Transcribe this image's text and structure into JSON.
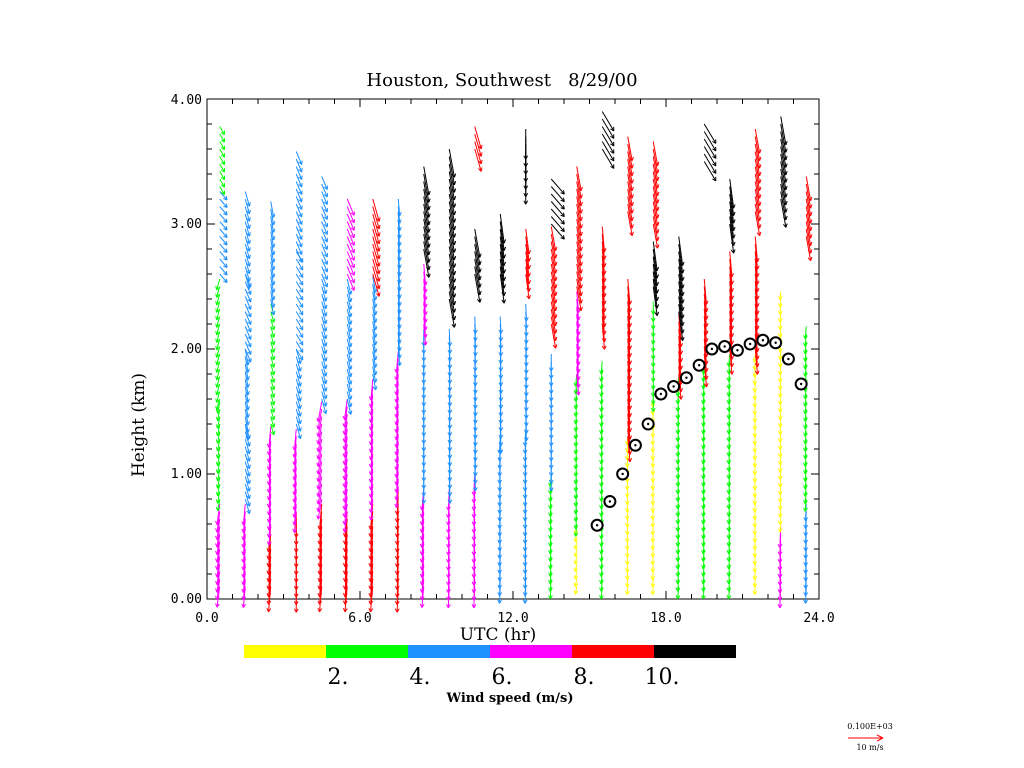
{
  "chart_data": {
    "type": "wind-profile",
    "title": "Houston, Southwest   8/29/00",
    "xlabel": "UTC (hr)",
    "ylabel": "Height (km)",
    "xlim": [
      0,
      24
    ],
    "ylim": [
      0,
      4
    ],
    "x_tick_labels": [
      "0.0",
      "6.0",
      "12.0",
      "18.0",
      "24.0"
    ],
    "y_tick_labels": [
      "0.00",
      "1.00",
      "2.00",
      "3.00",
      "4.00"
    ],
    "colorbar": {
      "label": "Wind speed (m/s)",
      "tick_labels": [
        "2.",
        "4.",
        "6.",
        "8.",
        "10."
      ],
      "colors": [
        "#ffff00",
        "#00ff00",
        "#1e90ff",
        "#ff00ff",
        "#ff0000",
        "#000000"
      ],
      "bins_mps": [
        [
          0,
          2
        ],
        [
          2,
          4
        ],
        [
          4,
          6
        ],
        [
          6,
          8
        ],
        [
          8,
          10
        ],
        [
          10,
          99
        ]
      ]
    },
    "reference_vector": {
      "value_label": "0.100E+03",
      "speed_label": "10 m/s",
      "color": "#ff0000"
    },
    "profile_times_utc": [
      0.5,
      1.5,
      2.5,
      3.5,
      4.5,
      5.5,
      6.5,
      7.5,
      8.5,
      9.5,
      10.5,
      11.5,
      12.5,
      13.5,
      14.5,
      15.5,
      16.5,
      17.5,
      18.5,
      19.5,
      20.5,
      21.5,
      22.5,
      23.5
    ],
    "mixing_height": {
      "marker": "circle",
      "points": [
        {
          "x": 15.3,
          "y": 0.59
        },
        {
          "x": 15.8,
          "y": 0.78
        },
        {
          "x": 16.3,
          "y": 1.0
        },
        {
          "x": 16.8,
          "y": 1.23
        },
        {
          "x": 17.3,
          "y": 1.4
        },
        {
          "x": 17.8,
          "y": 1.64
        },
        {
          "x": 18.3,
          "y": 1.7
        },
        {
          "x": 18.8,
          "y": 1.77
        },
        {
          "x": 19.3,
          "y": 1.87
        },
        {
          "x": 19.8,
          "y": 2.0
        },
        {
          "x": 20.3,
          "y": 2.02
        },
        {
          "x": 20.8,
          "y": 1.99
        },
        {
          "x": 21.3,
          "y": 2.04
        },
        {
          "x": 21.8,
          "y": 2.07
        },
        {
          "x": 22.3,
          "y": 2.05
        },
        {
          "x": 22.8,
          "y": 1.92
        },
        {
          "x": 23.3,
          "y": 1.72
        }
      ]
    },
    "wind_profiles": [
      {
        "t": 0.5,
        "top": 3.8,
        "layers": [
          {
            "y0": 0.1,
            "y1": 0.8,
            "spd": 7,
            "dir": 195
          },
          {
            "y0": 0.8,
            "y1": 1.6,
            "spd": 3,
            "dir": 200
          },
          {
            "y0": 1.6,
            "y1": 2.6,
            "spd": 3,
            "dir": 210
          },
          {
            "y0": 2.6,
            "y1": 3.3,
            "spd": 5,
            "dir": 120
          },
          {
            "y0": 3.3,
            "y1": 3.8,
            "spd": 3,
            "dir": 130
          }
        ]
      },
      {
        "t": 1.5,
        "top": 3.8,
        "layers": [
          {
            "y0": 0.1,
            "y1": 0.8,
            "spd": 7,
            "dir": 190
          },
          {
            "y0": 0.8,
            "y1": 1.4,
            "spd": 5,
            "dir": 150
          },
          {
            "y0": 1.4,
            "y1": 2.0,
            "spd": 5,
            "dir": 160
          },
          {
            "y0": 2.0,
            "y1": 2.6,
            "spd": 5,
            "dir": 140
          },
          {
            "y0": 2.6,
            "y1": 3.3,
            "spd": 5,
            "dir": 150
          }
        ]
      },
      {
        "t": 2.5,
        "top": 3.3,
        "layers": [
          {
            "y0": 0.1,
            "y1": 0.6,
            "spd": 9,
            "dir": 190
          },
          {
            "y0": 0.6,
            "y1": 1.4,
            "spd": 7,
            "dir": 190
          },
          {
            "y0": 1.4,
            "y1": 2.4,
            "spd": 3,
            "dir": 150
          },
          {
            "y0": 2.4,
            "y1": 3.2,
            "spd": 5,
            "dir": 160
          }
        ]
      },
      {
        "t": 3.5,
        "top": 3.8,
        "layers": [
          {
            "y0": 0.1,
            "y1": 0.7,
            "spd": 9,
            "dir": 180
          },
          {
            "y0": 0.7,
            "y1": 1.4,
            "spd": 7,
            "dir": 190
          },
          {
            "y0": 1.4,
            "y1": 2.0,
            "spd": 5,
            "dir": 150
          },
          {
            "y0": 2.0,
            "y1": 2.8,
            "spd": 5,
            "dir": 130
          },
          {
            "y0": 2.8,
            "y1": 3.6,
            "spd": 5,
            "dir": 140
          }
        ]
      },
      {
        "t": 4.5,
        "top": 3.6,
        "layers": [
          {
            "y0": 0.1,
            "y1": 0.8,
            "spd": 9,
            "dir": 190
          },
          {
            "y0": 0.8,
            "y1": 1.6,
            "spd": 7,
            "dir": 200
          },
          {
            "y0": 1.6,
            "y1": 2.6,
            "spd": 5,
            "dir": 150
          },
          {
            "y0": 2.6,
            "y1": 3.4,
            "spd": 5,
            "dir": 140
          }
        ]
      },
      {
        "t": 5.5,
        "top": 3.6,
        "layers": [
          {
            "y0": 0.1,
            "y1": 0.7,
            "spd": 9,
            "dir": 190
          },
          {
            "y0": 0.7,
            "y1": 1.6,
            "spd": 7,
            "dir": 195
          },
          {
            "y0": 1.6,
            "y1": 2.6,
            "spd": 5,
            "dir": 155
          },
          {
            "y0": 2.6,
            "y1": 3.2,
            "spd": 7,
            "dir": 140
          }
        ]
      },
      {
        "t": 6.5,
        "top": 3.5,
        "layers": [
          {
            "y0": 0.1,
            "y1": 0.8,
            "spd": 9,
            "dir": 190
          },
          {
            "y0": 0.8,
            "y1": 1.8,
            "spd": 7,
            "dir": 190
          },
          {
            "y0": 1.8,
            "y1": 2.6,
            "spd": 5,
            "dir": 160
          },
          {
            "y0": 2.6,
            "y1": 3.2,
            "spd": 9,
            "dir": 150
          }
        ]
      },
      {
        "t": 7.5,
        "top": 3.6,
        "layers": [
          {
            "y0": 0.1,
            "y1": 0.9,
            "spd": 9,
            "dir": 185
          },
          {
            "y0": 0.9,
            "y1": 2.0,
            "spd": 7,
            "dir": 190
          },
          {
            "y0": 2.0,
            "y1": 3.2,
            "spd": 5,
            "dir": 170
          }
        ]
      },
      {
        "t": 8.5,
        "top": 3.5,
        "layers": [
          {
            "y0": 0.1,
            "y1": 0.9,
            "spd": 7,
            "dir": 190
          },
          {
            "y0": 0.9,
            "y1": 2.2,
            "spd": 5,
            "dir": 180
          },
          {
            "y0": 2.2,
            "y1": 2.7,
            "spd": 7,
            "dir": 170
          },
          {
            "y0": 2.8,
            "y1": 3.5,
            "spd": 11,
            "dir": 160
          }
        ]
      },
      {
        "t": 9.5,
        "top": 3.8,
        "layers": [
          {
            "y0": 0.1,
            "y1": 0.9,
            "spd": 7,
            "dir": 185
          },
          {
            "y0": 0.9,
            "y1": 2.2,
            "spd": 5,
            "dir": 175
          },
          {
            "y0": 2.4,
            "y1": 3.6,
            "spd": 11,
            "dir": 160
          }
        ]
      },
      {
        "t": 10.5,
        "top": 3.8,
        "layers": [
          {
            "y0": 0.1,
            "y1": 1.0,
            "spd": 7,
            "dir": 185
          },
          {
            "y0": 1.0,
            "y1": 2.3,
            "spd": 5,
            "dir": 175
          },
          {
            "y0": 2.6,
            "y1": 3.0,
            "spd": 11,
            "dir": 160
          },
          {
            "y0": 3.6,
            "y1": 3.8,
            "spd": 9,
            "dir": 150
          }
        ]
      },
      {
        "t": 11.5,
        "top": 3.2,
        "layers": [
          {
            "y0": 0.1,
            "y1": 1.3,
            "spd": 5,
            "dir": 185
          },
          {
            "y0": 1.3,
            "y1": 2.3,
            "spd": 5,
            "dir": 175
          },
          {
            "y0": 2.6,
            "y1": 3.1,
            "spd": 11,
            "dir": 165
          }
        ]
      },
      {
        "t": 12.5,
        "top": 3.8,
        "layers": [
          {
            "y0": 0.1,
            "y1": 1.4,
            "spd": 5,
            "dir": 185
          },
          {
            "y0": 1.4,
            "y1": 2.4,
            "spd": 5,
            "dir": 175
          },
          {
            "y0": 2.6,
            "y1": 3.0,
            "spd": 9,
            "dir": 165
          },
          {
            "y0": 3.4,
            "y1": 3.8,
            "spd": 11,
            "dir": 180
          }
        ]
      },
      {
        "t": 13.5,
        "top": 3.6,
        "layers": [
          {
            "y0": 0.1,
            "y1": 1.0,
            "spd": 3,
            "dir": 190
          },
          {
            "y0": 1.0,
            "y1": 2.0,
            "spd": 5,
            "dir": 180
          },
          {
            "y0": 2.2,
            "y1": 3.0,
            "spd": 9,
            "dir": 160
          },
          {
            "y0": 3.0,
            "y1": 3.4,
            "spd": 11,
            "dir": 120
          }
        ]
      },
      {
        "t": 14.5,
        "top": 3.6,
        "layers": [
          {
            "y0": 0.1,
            "y1": 0.6,
            "spd": 1,
            "dir": 200
          },
          {
            "y0": 0.6,
            "y1": 1.8,
            "spd": 3,
            "dir": 190
          },
          {
            "y0": 1.8,
            "y1": 2.5,
            "spd": 7,
            "dir": 170
          },
          {
            "y0": 2.5,
            "y1": 3.5,
            "spd": 9,
            "dir": 160
          }
        ]
      },
      {
        "t": 15.5,
        "top": 3.8,
        "layers": [
          {
            "y0": 0.1,
            "y1": 0.7,
            "spd": 3,
            "dir": 190
          },
          {
            "y0": 0.7,
            "y1": 1.9,
            "spd": 3,
            "dir": 190
          },
          {
            "y0": 2.2,
            "y1": 3.0,
            "spd": 9,
            "dir": 170
          },
          {
            "y0": 3.6,
            "y1": 3.9,
            "spd": 11,
            "dir": 130
          }
        ]
      },
      {
        "t": 16.5,
        "top": 3.8,
        "layers": [
          {
            "y0": 0.1,
            "y1": 1.3,
            "spd": 1,
            "dir": 190
          },
          {
            "y0": 1.3,
            "y1": 2.6,
            "spd": 9,
            "dir": 170
          },
          {
            "y0": 3.1,
            "y1": 3.7,
            "spd": 9,
            "dir": 160
          }
        ]
      },
      {
        "t": 17.5,
        "top": 3.8,
        "layers": [
          {
            "y0": 0.1,
            "y1": 1.6,
            "spd": 1,
            "dir": 190
          },
          {
            "y0": 1.6,
            "y1": 2.4,
            "spd": 3,
            "dir": 180
          },
          {
            "y0": 2.5,
            "y1": 2.9,
            "spd": 11,
            "dir": 165
          },
          {
            "y0": 3.0,
            "y1": 3.7,
            "spd": 9,
            "dir": 160
          }
        ]
      },
      {
        "t": 18.5,
        "top": 2.9,
        "layers": [
          {
            "y0": 0.1,
            "y1": 1.8,
            "spd": 3,
            "dir": 190
          },
          {
            "y0": 1.8,
            "y1": 2.3,
            "spd": 9,
            "dir": 170
          },
          {
            "y0": 2.3,
            "y1": 2.9,
            "spd": 11,
            "dir": 165
          }
        ]
      },
      {
        "t": 19.5,
        "top": 3.8,
        "layers": [
          {
            "y0": 0.1,
            "y1": 1.9,
            "spd": 3,
            "dir": 190
          },
          {
            "y0": 1.9,
            "y1": 2.6,
            "spd": 9,
            "dir": 170
          },
          {
            "y0": 3.5,
            "y1": 3.8,
            "spd": 11,
            "dir": 130
          }
        ]
      },
      {
        "t": 20.5,
        "top": 3.4,
        "layers": [
          {
            "y0": 0.1,
            "y1": 2.0,
            "spd": 3,
            "dir": 190
          },
          {
            "y0": 2.0,
            "y1": 2.8,
            "spd": 9,
            "dir": 170
          },
          {
            "y0": 3.0,
            "y1": 3.4,
            "spd": 11,
            "dir": 165
          }
        ]
      },
      {
        "t": 21.5,
        "top": 3.8,
        "layers": [
          {
            "y0": 0.1,
            "y1": 2.0,
            "spd": 1,
            "dir": 190
          },
          {
            "y0": 2.0,
            "y1": 2.9,
            "spd": 9,
            "dir": 170
          },
          {
            "y0": 3.1,
            "y1": 3.8,
            "spd": 9,
            "dir": 160
          }
        ]
      },
      {
        "t": 22.5,
        "top": 3.9,
        "layers": [
          {
            "y0": 0.1,
            "y1": 0.6,
            "spd": 7,
            "dir": 185
          },
          {
            "y0": 0.6,
            "y1": 2.5,
            "spd": 1,
            "dir": 190
          },
          {
            "y0": 3.2,
            "y1": 3.9,
            "spd": 11,
            "dir": 160
          }
        ]
      },
      {
        "t": 23.5,
        "top": 3.4,
        "layers": [
          {
            "y0": 0.1,
            "y1": 0.8,
            "spd": 5,
            "dir": 185
          },
          {
            "y0": 0.8,
            "y1": 2.2,
            "spd": 3,
            "dir": 190
          },
          {
            "y0": 2.9,
            "y1": 3.4,
            "spd": 9,
            "dir": 160
          }
        ]
      }
    ]
  }
}
